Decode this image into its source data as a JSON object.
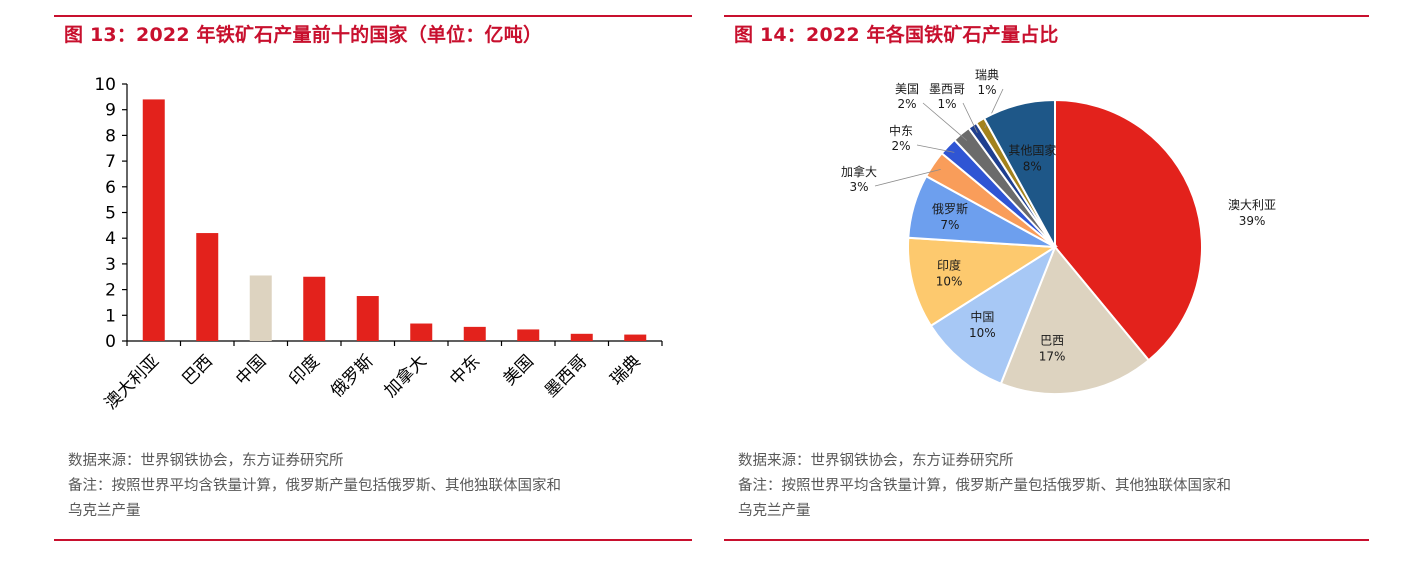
{
  "left": {
    "title": "图 13：2022 年铁矿石产量前十的国家（单位：亿吨）",
    "source": "数据来源：世界钢铁协会，东方证券研究所",
    "note_line1": "备注：按照世界平均含铁量计算，俄罗斯产量包括俄罗斯、其他独联体国家和",
    "note_line2": "乌克兰产量"
  },
  "right": {
    "title": "图 14：2022 年各国铁矿石产量占比",
    "source": "数据来源：世界钢铁协会，东方证券研究所",
    "note_line1": "备注：按照世界平均含铁量计算，俄罗斯产量包括俄罗斯、其他独联体国家和",
    "note_line2": "乌克兰产量"
  },
  "chart_data": [
    {
      "type": "bar",
      "title": "图 13：2022 年铁矿石产量前十的国家（单位：亿吨）",
      "categories": [
        "澳大利亚",
        "巴西",
        "中国",
        "印度",
        "俄罗斯",
        "加拿大",
        "中东",
        "美国",
        "墨西哥",
        "瑞典"
      ],
      "values": [
        9.4,
        4.2,
        2.55,
        2.5,
        1.75,
        0.68,
        0.55,
        0.45,
        0.28,
        0.25
      ],
      "bar_colors": [
        "#e3221c",
        "#e3221c",
        "#ddd3c0",
        "#e3221c",
        "#e3221c",
        "#e3221c",
        "#e3221c",
        "#e3221c",
        "#e3221c",
        "#e3221c"
      ],
      "ylim": [
        0,
        10
      ],
      "yticks": [
        "0",
        "1",
        "2",
        "3",
        "4",
        "5",
        "6",
        "7",
        "8",
        "9",
        "10"
      ],
      "grid": false,
      "legend": "none"
    },
    {
      "type": "pie",
      "title": "图 14：2022 年各国铁矿石产量占比",
      "slices": [
        {
          "label": "澳大利亚",
          "value": 39,
          "pct": "39%",
          "color": "#e3221c",
          "text_color": "#1a1a1a"
        },
        {
          "label": "巴西",
          "value": 17,
          "pct": "17%",
          "color": "#ddd3c0",
          "text_color": "#1a1a1a"
        },
        {
          "label": "中国",
          "value": 10,
          "pct": "10%",
          "color": "#a7c8f5",
          "text_color": "#1a1a1a"
        },
        {
          "label": "印度",
          "value": 10,
          "pct": "10%",
          "color": "#fdc96e",
          "text_color": "#1a1a1a"
        },
        {
          "label": "俄罗斯",
          "value": 7,
          "pct": "7%",
          "color": "#6d9fee",
          "text_color": "#1a1a1a"
        },
        {
          "label": "加拿大",
          "value": 3,
          "pct": "3%",
          "color": "#f99d5a",
          "text_color": "#1a1a1a"
        },
        {
          "label": "中东",
          "value": 2,
          "pct": "2%",
          "color": "#2f55d4",
          "text_color": "#1a1a1a"
        },
        {
          "label": "美国",
          "value": 2,
          "pct": "2%",
          "color": "#6b6b6b",
          "text_color": "#1a1a1a"
        },
        {
          "label": "墨西哥",
          "value": 1,
          "pct": "1%",
          "color": "#1f3f8f",
          "text_color": "#1a1a1a"
        },
        {
          "label": "瑞典",
          "value": 1,
          "pct": "1%",
          "color": "#a3821c",
          "text_color": "#1a1a1a"
        },
        {
          "label": "其他国家",
          "value": 8,
          "pct": "8%",
          "color": "#1e5788",
          "text_color": "#1a1a1a"
        }
      ],
      "start_angle_deg": 0,
      "direction": "clockwise",
      "legend": "none"
    }
  ]
}
